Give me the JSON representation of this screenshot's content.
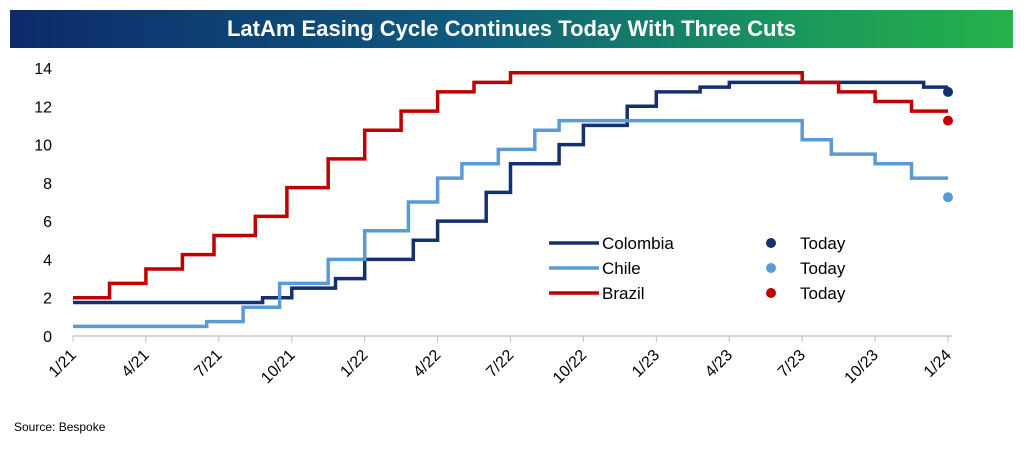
{
  "title": "LatAm Easing Cycle Continues Today With Three Cuts",
  "source": "Source: Bespoke",
  "chart_data": {
    "type": "line",
    "step": true,
    "title": "LatAm Easing Cycle Continues Today With Three Cuts",
    "x_ticks": [
      "1/21",
      "4/21",
      "7/21",
      "10/21",
      "1/22",
      "4/22",
      "7/22",
      "10/22",
      "1/23",
      "4/23",
      "7/23",
      "10/23",
      "1/24"
    ],
    "x_range": [
      0,
      36
    ],
    "ylim": [
      0,
      14
    ],
    "y_ticks": [
      0,
      2,
      4,
      6,
      8,
      10,
      12,
      14
    ],
    "grid": false,
    "legend_position": "center-right",
    "series": [
      {
        "name": "Colombia",
        "color": "#14306e",
        "points": [
          [
            0,
            1.75
          ],
          [
            7.8,
            1.75
          ],
          [
            7.8,
            2.0
          ],
          [
            9.0,
            2.0
          ],
          [
            9.0,
            2.5
          ],
          [
            10.8,
            2.5
          ],
          [
            10.8,
            3.0
          ],
          [
            12.0,
            3.0
          ],
          [
            12.0,
            4.0
          ],
          [
            14.0,
            4.0
          ],
          [
            14.0,
            5.0
          ],
          [
            15.0,
            5.0
          ],
          [
            15.0,
            6.0
          ],
          [
            17.0,
            6.0
          ],
          [
            17.0,
            7.5
          ],
          [
            18.0,
            7.5
          ],
          [
            18.0,
            9.0
          ],
          [
            20.0,
            9.0
          ],
          [
            20.0,
            10.0
          ],
          [
            21.0,
            10.0
          ],
          [
            21.0,
            11.0
          ],
          [
            22.8,
            11.0
          ],
          [
            22.8,
            12.0
          ],
          [
            24.0,
            12.0
          ],
          [
            24.0,
            12.75
          ],
          [
            25.8,
            12.75
          ],
          [
            25.8,
            13.0
          ],
          [
            27.0,
            13.0
          ],
          [
            27.0,
            13.25
          ],
          [
            33.0,
            13.25
          ],
          [
            33.0,
            13.25
          ],
          [
            35.0,
            13.25
          ],
          [
            35.0,
            13.0
          ],
          [
            36.0,
            13.0
          ]
        ],
        "today": 12.75,
        "today_label": "Today"
      },
      {
        "name": "Chile",
        "color": "#5b9bd5",
        "points": [
          [
            0,
            0.5
          ],
          [
            5.5,
            0.5
          ],
          [
            5.5,
            0.75
          ],
          [
            7.0,
            0.75
          ],
          [
            7.0,
            1.5
          ],
          [
            8.5,
            1.5
          ],
          [
            8.5,
            2.75
          ],
          [
            10.5,
            2.75
          ],
          [
            10.5,
            4.0
          ],
          [
            12.0,
            4.0
          ],
          [
            12.0,
            5.5
          ],
          [
            13.8,
            5.5
          ],
          [
            13.8,
            7.0
          ],
          [
            15.0,
            7.0
          ],
          [
            15.0,
            8.25
          ],
          [
            16.0,
            8.25
          ],
          [
            16.0,
            9.0
          ],
          [
            17.5,
            9.0
          ],
          [
            17.5,
            9.75
          ],
          [
            19.0,
            9.75
          ],
          [
            19.0,
            10.75
          ],
          [
            20.0,
            10.75
          ],
          [
            20.0,
            11.25
          ],
          [
            30.0,
            11.25
          ],
          [
            30.0,
            10.25
          ],
          [
            31.2,
            10.25
          ],
          [
            31.2,
            9.5
          ],
          [
            33.0,
            9.5
          ],
          [
            33.0,
            9.0
          ],
          [
            34.5,
            9.0
          ],
          [
            34.5,
            8.25
          ],
          [
            36.0,
            8.25
          ]
        ],
        "today": 7.25,
        "today_label": "Today"
      },
      {
        "name": "Brazil",
        "color": "#c00000",
        "points": [
          [
            0,
            2.0
          ],
          [
            1.5,
            2.0
          ],
          [
            1.5,
            2.75
          ],
          [
            3.0,
            2.75
          ],
          [
            3.0,
            3.5
          ],
          [
            4.5,
            3.5
          ],
          [
            4.5,
            4.25
          ],
          [
            5.8,
            4.25
          ],
          [
            5.8,
            5.25
          ],
          [
            7.5,
            5.25
          ],
          [
            7.5,
            6.25
          ],
          [
            8.8,
            6.25
          ],
          [
            8.8,
            7.75
          ],
          [
            10.5,
            7.75
          ],
          [
            10.5,
            9.25
          ],
          [
            12.0,
            9.25
          ],
          [
            12.0,
            10.75
          ],
          [
            13.5,
            10.75
          ],
          [
            13.5,
            11.75
          ],
          [
            15.0,
            11.75
          ],
          [
            15.0,
            12.75
          ],
          [
            16.5,
            12.75
          ],
          [
            16.5,
            13.25
          ],
          [
            18.0,
            13.25
          ],
          [
            18.0,
            13.75
          ],
          [
            30.0,
            13.75
          ],
          [
            30.0,
            13.25
          ],
          [
            31.5,
            13.25
          ],
          [
            31.5,
            12.75
          ],
          [
            33.0,
            12.75
          ],
          [
            33.0,
            12.25
          ],
          [
            34.5,
            12.25
          ],
          [
            34.5,
            11.75
          ],
          [
            36.0,
            11.75
          ]
        ],
        "today": 11.25,
        "today_label": "Today"
      }
    ]
  }
}
